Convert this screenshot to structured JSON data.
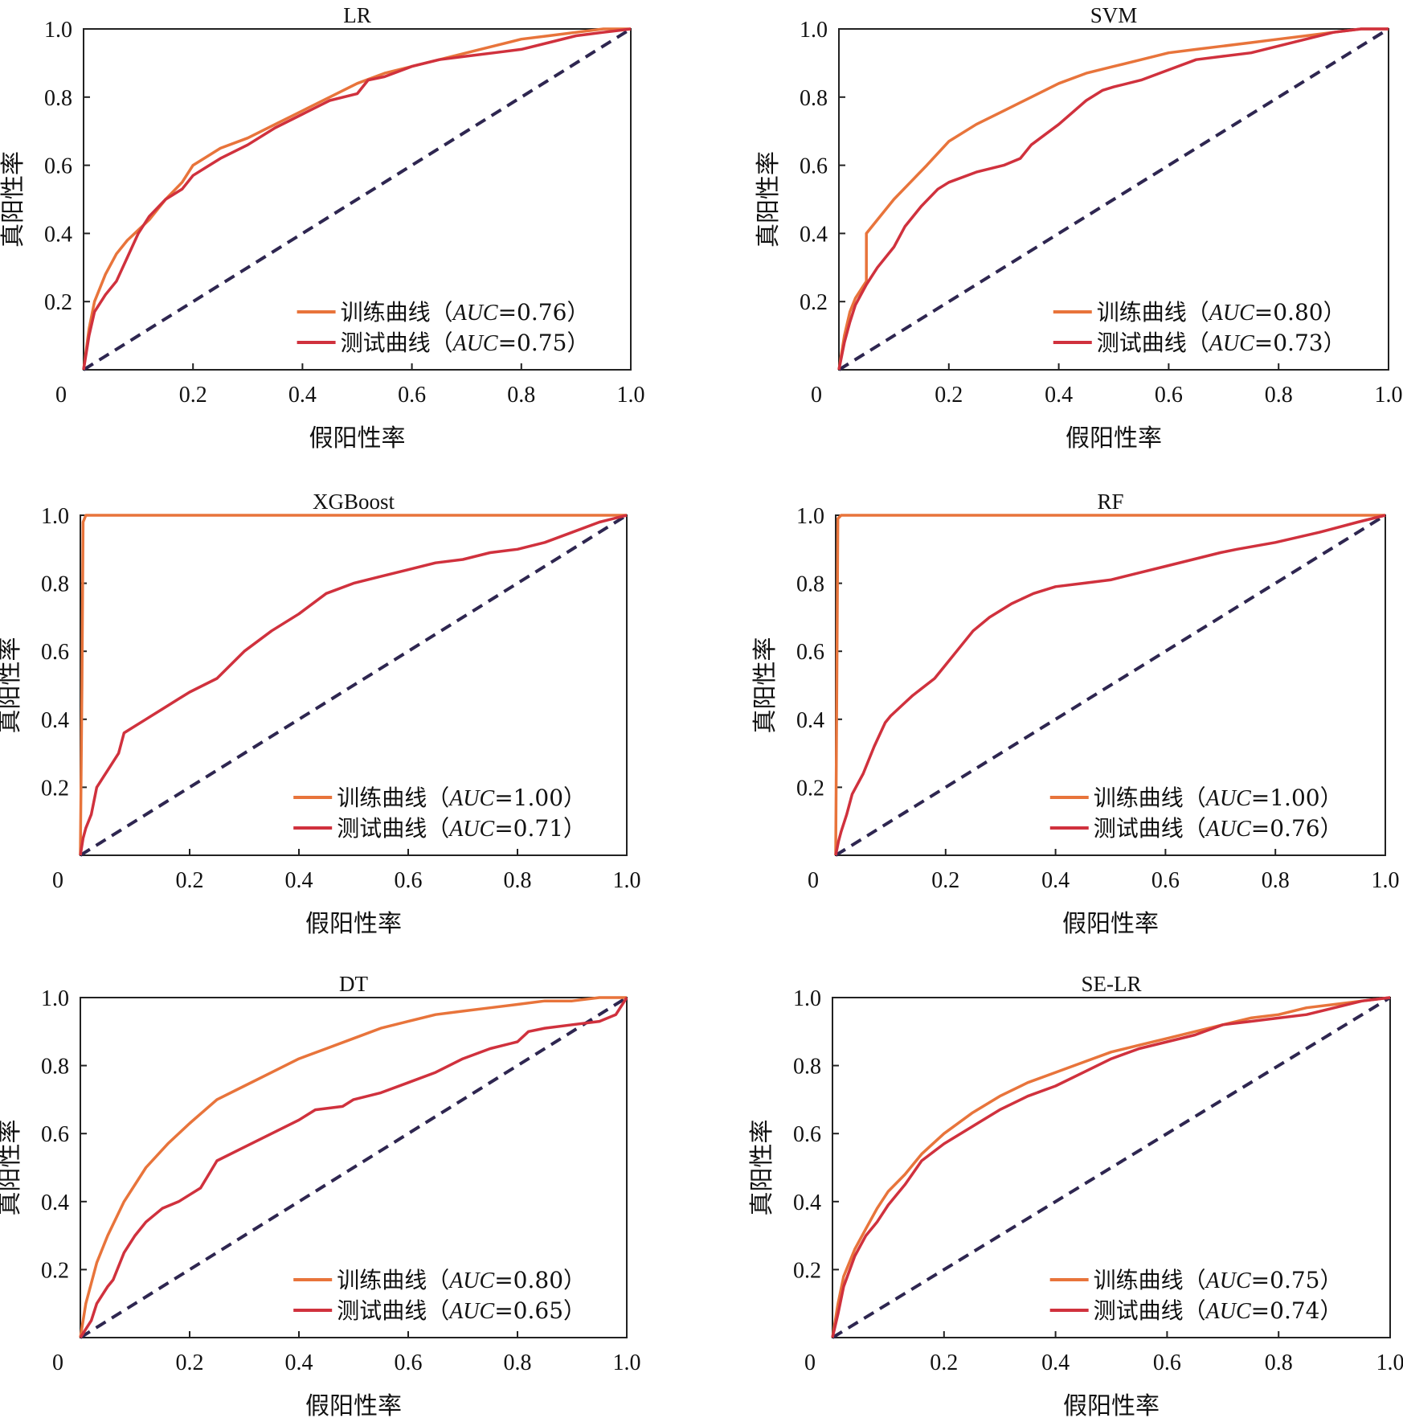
{
  "colors": {
    "train": "#E8743B",
    "test": "#D0313D",
    "diagonal": "#2E2650",
    "axis": "#222222"
  },
  "axis_labels": {
    "x": "假阳性率",
    "y": "真阳性率"
  },
  "x_ticks": [
    "0",
    "0.2",
    "0.4",
    "0.6",
    "0.8",
    "1.0"
  ],
  "y_ticks": [
    "0.2",
    "0.4",
    "0.6",
    "0.8",
    "1.0"
  ],
  "legend": {
    "train_prefix": "训练曲线",
    "test_prefix": "测试曲线",
    "metric": "AUC"
  },
  "chart_data": [
    {
      "type": "line",
      "title": "LR",
      "xlabel": "假阳性率",
      "ylabel": "真阳性率",
      "xlim": [
        0,
        1
      ],
      "ylim": [
        0,
        1
      ],
      "series": [
        {
          "name": "训练曲线",
          "auc": "0.76",
          "x": [
            0,
            0.01,
            0.02,
            0.04,
            0.06,
            0.08,
            0.1,
            0.12,
            0.15,
            0.18,
            0.2,
            0.25,
            0.3,
            0.35,
            0.4,
            0.45,
            0.5,
            0.55,
            0.6,
            0.65,
            0.7,
            0.75,
            0.8,
            0.85,
            0.9,
            0.95,
            1.0
          ],
          "y": [
            0,
            0.12,
            0.2,
            0.28,
            0.34,
            0.38,
            0.41,
            0.44,
            0.5,
            0.55,
            0.6,
            0.65,
            0.68,
            0.72,
            0.76,
            0.8,
            0.84,
            0.87,
            0.89,
            0.91,
            0.93,
            0.95,
            0.97,
            0.98,
            0.99,
            1.0,
            1.0
          ]
        },
        {
          "name": "测试曲线",
          "auc": "0.75",
          "x": [
            0,
            0.01,
            0.02,
            0.04,
            0.06,
            0.08,
            0.1,
            0.12,
            0.15,
            0.18,
            0.2,
            0.25,
            0.3,
            0.35,
            0.4,
            0.45,
            0.5,
            0.52,
            0.55,
            0.6,
            0.65,
            0.7,
            0.75,
            0.8,
            0.85,
            0.9,
            0.95,
            1.0
          ],
          "y": [
            0,
            0.1,
            0.17,
            0.22,
            0.26,
            0.33,
            0.4,
            0.45,
            0.5,
            0.53,
            0.57,
            0.62,
            0.66,
            0.71,
            0.75,
            0.79,
            0.81,
            0.85,
            0.86,
            0.89,
            0.91,
            0.92,
            0.93,
            0.94,
            0.96,
            0.98,
            0.99,
            1.0
          ]
        }
      ]
    },
    {
      "type": "line",
      "title": "SVM",
      "xlabel": "假阳性率",
      "ylabel": "真阳性率",
      "xlim": [
        0,
        1
      ],
      "ylim": [
        0,
        1
      ],
      "series": [
        {
          "name": "训练曲线",
          "auc": "0.80",
          "x": [
            0,
            0.01,
            0.02,
            0.03,
            0.05,
            0.05,
            0.07,
            0.1,
            0.13,
            0.16,
            0.2,
            0.25,
            0.3,
            0.35,
            0.4,
            0.45,
            0.5,
            0.55,
            0.6,
            0.65,
            0.7,
            0.75,
            0.8,
            0.85,
            0.9,
            0.95,
            1.0
          ],
          "y": [
            0,
            0.1,
            0.17,
            0.21,
            0.26,
            0.4,
            0.44,
            0.5,
            0.55,
            0.6,
            0.67,
            0.72,
            0.76,
            0.8,
            0.84,
            0.87,
            0.89,
            0.91,
            0.93,
            0.94,
            0.95,
            0.96,
            0.97,
            0.98,
            0.99,
            1.0,
            1.0
          ]
        },
        {
          "name": "测试曲线",
          "auc": "0.73",
          "x": [
            0,
            0.01,
            0.02,
            0.03,
            0.05,
            0.07,
            0.1,
            0.12,
            0.15,
            0.18,
            0.2,
            0.25,
            0.3,
            0.33,
            0.35,
            0.4,
            0.45,
            0.48,
            0.5,
            0.55,
            0.6,
            0.65,
            0.7,
            0.75,
            0.8,
            0.85,
            0.9,
            0.95,
            1.0
          ],
          "y": [
            0,
            0.08,
            0.14,
            0.19,
            0.25,
            0.3,
            0.36,
            0.42,
            0.48,
            0.53,
            0.55,
            0.58,
            0.6,
            0.62,
            0.66,
            0.72,
            0.79,
            0.82,
            0.83,
            0.85,
            0.88,
            0.91,
            0.92,
            0.93,
            0.95,
            0.97,
            0.99,
            1.0,
            1.0
          ]
        }
      ]
    },
    {
      "type": "line",
      "title": "XGBoost",
      "xlabel": "假阳性率",
      "ylabel": "真阳性率",
      "xlim": [
        0,
        1
      ],
      "ylim": [
        0,
        1
      ],
      "series": [
        {
          "name": "训练曲线",
          "auc": "1.00",
          "x": [
            0,
            0.003,
            0.005,
            0.01,
            0.5,
            1.0
          ],
          "y": [
            0,
            0.5,
            0.98,
            1.0,
            1.0,
            1.0
          ]
        },
        {
          "name": "测试曲线",
          "auc": "0.71",
          "x": [
            0,
            0.005,
            0.01,
            0.02,
            0.03,
            0.05,
            0.07,
            0.08,
            0.1,
            0.12,
            0.15,
            0.18,
            0.2,
            0.25,
            0.3,
            0.35,
            0.4,
            0.45,
            0.5,
            0.55,
            0.6,
            0.65,
            0.7,
            0.75,
            0.8,
            0.85,
            0.9,
            0.95,
            1.0
          ],
          "y": [
            0,
            0.05,
            0.08,
            0.12,
            0.2,
            0.25,
            0.3,
            0.36,
            0.38,
            0.4,
            0.43,
            0.46,
            0.48,
            0.52,
            0.6,
            0.66,
            0.71,
            0.77,
            0.8,
            0.82,
            0.84,
            0.86,
            0.87,
            0.89,
            0.9,
            0.92,
            0.95,
            0.98,
            1.0
          ]
        }
      ]
    },
    {
      "type": "line",
      "title": "RF",
      "xlabel": "假阳性率",
      "ylabel": "真阳性率",
      "xlim": [
        0,
        1
      ],
      "ylim": [
        0,
        1
      ],
      "series": [
        {
          "name": "训练曲线",
          "auc": "1.00",
          "x": [
            0,
            0.002,
            0.004,
            0.01,
            0.5,
            1.0
          ],
          "y": [
            0,
            0.5,
            0.99,
            1.0,
            1.0,
            1.0
          ]
        },
        {
          "name": "测试曲线",
          "auc": "0.76",
          "x": [
            0,
            0.005,
            0.01,
            0.02,
            0.03,
            0.05,
            0.07,
            0.09,
            0.1,
            0.12,
            0.14,
            0.18,
            0.2,
            0.22,
            0.25,
            0.28,
            0.32,
            0.36,
            0.4,
            0.45,
            0.5,
            0.55,
            0.6,
            0.65,
            0.7,
            0.73,
            0.8,
            0.88,
            0.95,
            1.0
          ],
          "y": [
            0,
            0.04,
            0.07,
            0.12,
            0.18,
            0.24,
            0.32,
            0.39,
            0.41,
            0.44,
            0.47,
            0.52,
            0.56,
            0.6,
            0.66,
            0.7,
            0.74,
            0.77,
            0.79,
            0.8,
            0.81,
            0.83,
            0.85,
            0.87,
            0.89,
            0.9,
            0.92,
            0.95,
            0.98,
            1.0
          ]
        }
      ]
    },
    {
      "type": "line",
      "title": "DT",
      "xlabel": "假阳性率",
      "ylabel": "真阳性率",
      "xlim": [
        0,
        1
      ],
      "ylim": [
        0,
        1
      ],
      "series": [
        {
          "name": "训练曲线",
          "auc": "0.80",
          "x": [
            0,
            0.01,
            0.03,
            0.05,
            0.08,
            0.12,
            0.16,
            0.2,
            0.25,
            0.3,
            0.35,
            0.4,
            0.45,
            0.5,
            0.55,
            0.6,
            0.65,
            0.7,
            0.75,
            0.8,
            0.85,
            0.9,
            0.95,
            1.0
          ],
          "y": [
            0,
            0.1,
            0.22,
            0.3,
            0.4,
            0.5,
            0.57,
            0.63,
            0.7,
            0.74,
            0.78,
            0.82,
            0.85,
            0.88,
            0.91,
            0.93,
            0.95,
            0.96,
            0.97,
            0.98,
            0.99,
            0.99,
            1.0,
            1.0
          ]
        },
        {
          "name": "测试曲线",
          "auc": "0.65",
          "x": [
            0,
            0.02,
            0.03,
            0.05,
            0.06,
            0.08,
            0.1,
            0.12,
            0.15,
            0.18,
            0.2,
            0.22,
            0.25,
            0.3,
            0.35,
            0.4,
            0.43,
            0.48,
            0.5,
            0.55,
            0.6,
            0.65,
            0.7,
            0.75,
            0.8,
            0.82,
            0.85,
            0.9,
            0.95,
            0.98,
            1.0
          ],
          "y": [
            0,
            0.05,
            0.1,
            0.15,
            0.17,
            0.25,
            0.3,
            0.34,
            0.38,
            0.4,
            0.42,
            0.44,
            0.52,
            0.56,
            0.6,
            0.64,
            0.67,
            0.68,
            0.7,
            0.72,
            0.75,
            0.78,
            0.82,
            0.85,
            0.87,
            0.9,
            0.91,
            0.92,
            0.93,
            0.95,
            1.0
          ]
        }
      ]
    },
    {
      "type": "line",
      "title": "SE-LR",
      "xlabel": "假阳性率",
      "ylabel": "真阳性率",
      "xlim": [
        0,
        1
      ],
      "ylim": [
        0,
        1
      ],
      "series": [
        {
          "name": "训练曲线",
          "auc": "0.75",
          "x": [
            0,
            0.01,
            0.02,
            0.04,
            0.06,
            0.08,
            0.1,
            0.13,
            0.16,
            0.2,
            0.25,
            0.3,
            0.35,
            0.4,
            0.45,
            0.5,
            0.55,
            0.6,
            0.65,
            0.7,
            0.75,
            0.8,
            0.85,
            0.9,
            0.95,
            1.0
          ],
          "y": [
            0,
            0.1,
            0.18,
            0.26,
            0.32,
            0.38,
            0.43,
            0.48,
            0.54,
            0.6,
            0.66,
            0.71,
            0.75,
            0.78,
            0.81,
            0.84,
            0.86,
            0.88,
            0.9,
            0.92,
            0.94,
            0.95,
            0.97,
            0.98,
            0.99,
            1.0
          ]
        },
        {
          "name": "测试曲线",
          "auc": "0.74",
          "x": [
            0,
            0.01,
            0.02,
            0.04,
            0.06,
            0.08,
            0.1,
            0.13,
            0.16,
            0.2,
            0.25,
            0.3,
            0.35,
            0.4,
            0.45,
            0.5,
            0.55,
            0.6,
            0.65,
            0.7,
            0.75,
            0.8,
            0.85,
            0.9,
            0.95,
            1.0
          ],
          "y": [
            0,
            0.07,
            0.15,
            0.24,
            0.3,
            0.34,
            0.39,
            0.45,
            0.52,
            0.57,
            0.62,
            0.67,
            0.71,
            0.74,
            0.78,
            0.82,
            0.85,
            0.87,
            0.89,
            0.92,
            0.93,
            0.94,
            0.95,
            0.97,
            0.99,
            1.0
          ]
        }
      ]
    }
  ]
}
